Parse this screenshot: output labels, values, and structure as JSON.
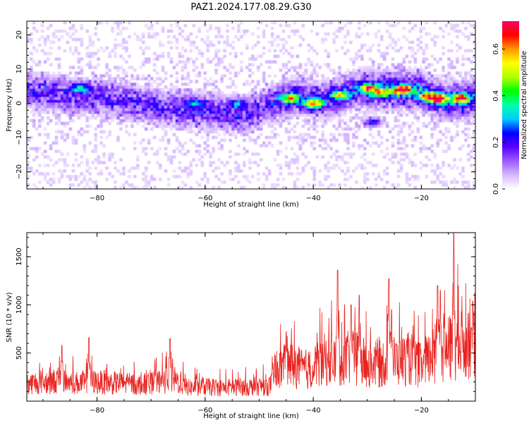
{
  "figure_title": "PAZ1.2024.177.08.29.G30",
  "chart_data": [
    {
      "type": "heatmap",
      "title": "",
      "xlabel": "Height of straight line (km)",
      "ylabel": "Frequency (Hz)",
      "xlim": [
        -93,
        -10
      ],
      "ylim": [
        -25,
        24
      ],
      "xticks": [
        -80,
        -60,
        -40,
        -20
      ],
      "yticks": [
        -20,
        -10,
        0,
        10,
        20
      ],
      "colorbar": {
        "label": "Normalized spectral amplitude",
        "range": [
          0,
          0.72
        ],
        "ticks": [
          "0.0",
          "0.2",
          "0.4",
          "0.6"
        ],
        "tick_values": [
          0.0,
          0.2,
          0.4,
          0.6
        ],
        "colors": [
          "#ffffff",
          "#d7b8ff",
          "#9a5cff",
          "#5a00ff",
          "#0000ff",
          "#00ccff",
          "#00ffaa",
          "#00ff00",
          "#b0ff00",
          "#ffff00",
          "#ff9900",
          "#ff0000",
          "#ff0066"
        ]
      },
      "ridge": {
        "x": [
          -93,
          -88,
          -84,
          -80,
          -76,
          -72,
          -68,
          -64,
          -60,
          -56,
          -52,
          -48,
          -46,
          -44,
          -42,
          -40,
          -38,
          -36,
          -34,
          -32,
          -30,
          -28,
          -26,
          -24,
          -22,
          -20,
          -18,
          -16,
          -14,
          -12,
          -10
        ],
        "y": [
          4,
          3,
          2,
          2,
          1,
          0,
          -1,
          -2,
          -2,
          -3,
          -3,
          0,
          1,
          2,
          2,
          1,
          1,
          2,
          3,
          4,
          4,
          4,
          4,
          4,
          4,
          4,
          2,
          1,
          1,
          1,
          2
        ]
      },
      "peaks": [
        {
          "x": -23.5,
          "y": 4.0,
          "value": 0.7
        },
        {
          "x": -40.0,
          "y": 0.0,
          "value": 0.5
        },
        {
          "x": -44.0,
          "y": 1.5,
          "value": 0.4
        },
        {
          "x": -30.0,
          "y": 4.5,
          "value": 0.45
        },
        {
          "x": -35.0,
          "y": 2.5,
          "value": 0.4
        },
        {
          "x": -16.5,
          "y": 1.5,
          "value": 0.55
        },
        {
          "x": -12.5,
          "y": 1.5,
          "value": 0.5
        },
        {
          "x": -19.0,
          "y": 2.0,
          "value": 0.45
        },
        {
          "x": -27.5,
          "y": 3.5,
          "value": 0.4
        },
        {
          "x": -83.0,
          "y": 4.5,
          "value": 0.25
        },
        {
          "x": -62.0,
          "y": 0.0,
          "value": 0.2
        },
        {
          "x": -54.0,
          "y": 0.0,
          "value": 0.2
        },
        {
          "x": -29.0,
          "y": -5.5,
          "value": 0.2
        }
      ]
    },
    {
      "type": "line",
      "title": "",
      "xlabel": "Height of straight line (km)",
      "ylabel": "SNR (10 * v/v)",
      "xlim": [
        -93,
        -10
      ],
      "ylim": [
        0,
        1750
      ],
      "xticks": [
        -80,
        -60,
        -40,
        -20
      ],
      "yticks": [
        500,
        1000,
        1500
      ],
      "line_color": "#e8231f",
      "series": [
        {
          "x": [
            -93,
            -90,
            -87,
            -84,
            -81,
            -78,
            -75,
            -72,
            -69,
            -66,
            -63,
            -60,
            -57,
            -54,
            -51,
            -48,
            -46,
            -44,
            -42,
            -40,
            -38,
            -36,
            -34,
            -32,
            -30,
            -28,
            -26,
            -24,
            -22,
            -20,
            -18,
            -16,
            -14,
            -12,
            -10
          ],
          "values": [
            180,
            200,
            210,
            190,
            200,
            190,
            185,
            170,
            190,
            230,
            140,
            150,
            140,
            145,
            150,
            160,
            350,
            380,
            330,
            330,
            430,
            420,
            440,
            450,
            380,
            380,
            420,
            420,
            440,
            360,
            460,
            520,
            560,
            600,
            700
          ],
          "spikes": [
            {
              "x": -86.5,
              "value": 580
            },
            {
              "x": -81.5,
              "value": 660
            },
            {
              "x": -66.5,
              "value": 650
            },
            {
              "x": -45.0,
              "value": 720
            },
            {
              "x": -35.5,
              "value": 1360
            },
            {
              "x": -33.0,
              "value": 1000
            },
            {
              "x": -31.5,
              "value": 1100
            },
            {
              "x": -26.0,
              "value": 1270
            },
            {
              "x": -25.5,
              "value": 950
            },
            {
              "x": -17.0,
              "value": 1200
            },
            {
              "x": -16.5,
              "value": 1150
            },
            {
              "x": -14.0,
              "value": 1780
            },
            {
              "x": -10.5,
              "value": 1040
            }
          ]
        }
      ]
    }
  ]
}
